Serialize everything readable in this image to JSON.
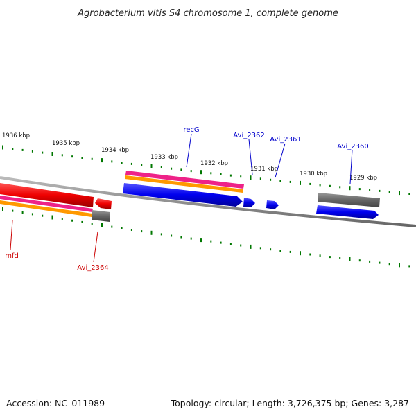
{
  "title": "Agrobacterium vitis S4 chromosome 1, complete genome",
  "footer": {
    "accession": "Accession: NC_011989",
    "summary": "Topology: circular; Length: 3,726,375 bp; Genes: 3,287"
  },
  "scale_labels": [
    "1936 kbp",
    "1935 kbp",
    "1934 kbp",
    "1933 kbp",
    "1932 kbp",
    "1931 kbp",
    "1930 kbp",
    "1929 kbp"
  ],
  "genes": [
    {
      "name": "recG",
      "color": "#0000cc"
    },
    {
      "name": "Avi_2362",
      "color": "#0000cc"
    },
    {
      "name": "Avi_2361",
      "color": "#0000cc"
    },
    {
      "name": "Avi_2360",
      "color": "#0000cc"
    },
    {
      "name": "mfd",
      "color": "#cc0000"
    },
    {
      "name": "Avi_2364",
      "color": "#cc0000"
    }
  ],
  "colors": {
    "backbone": "#888888",
    "tick": "#007700",
    "forward_cds": "#0000ee",
    "reverse_cds": "#ee0000",
    "rna_gene": "#666666",
    "feature_pink": "#ee2288",
    "feature_orange": "#ff9900"
  }
}
